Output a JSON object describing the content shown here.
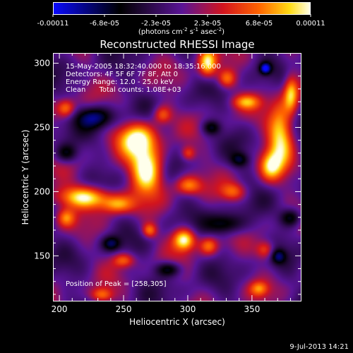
{
  "chart_data": {
    "type": "heatmap",
    "title": "Reconstructed RHESSI Image",
    "xlabel": "Heliocentric X (arcsec)",
    "ylabel": "Heliocentric Y (arcsec)",
    "xlim": [
      195,
      388
    ],
    "ylim": [
      115,
      308
    ],
    "x_ticks": [
      {
        "value": 200,
        "label": "200"
      },
      {
        "value": 250,
        "label": "250"
      },
      {
        "value": 300,
        "label": "300"
      },
      {
        "value": 350,
        "label": "350"
      }
    ],
    "y_ticks": [
      {
        "value": 150,
        "label": "150"
      },
      {
        "value": 200,
        "label": "200"
      },
      {
        "value": 250,
        "label": "250"
      },
      {
        "value": 300,
        "label": "300"
      }
    ],
    "colorbar": {
      "min": -0.00011,
      "max": 0.00011,
      "tick_labels": [
        "-0.00011",
        "-6.8e-05",
        "-2.3e-05",
        "2.3e-05",
        "6.8e-05",
        "0.00011"
      ],
      "unit_text": {
        "pre": "(photons cm",
        "sup1": "-2",
        "mid1": " s",
        "sup2": "-1",
        "mid2": " asec",
        "sup3": "-2",
        "post": ")"
      }
    },
    "info_lines": [
      "15-May-2005 18:32:40.000 to 18:35:16.000",
      "Detectors: 4F 5F 6F 7F 8F, Att 0",
      "Energy Range: 12.0 - 25.0 keV",
      "Clean      Total counts: 1.08E+03"
    ],
    "peak_label": "Position of Peak = [258,305]",
    "peak": [
      258,
      305
    ],
    "sources": [
      {
        "x": 268,
        "y": 218,
        "sx": 9,
        "sy": 13,
        "amp": 1.0
      },
      {
        "x": 260,
        "y": 242,
        "sx": 10,
        "sy": 9,
        "amp": 0.8
      },
      {
        "x": 220,
        "y": 196,
        "sx": 16,
        "sy": 6,
        "amp": 0.85
      },
      {
        "x": 245,
        "y": 190,
        "sx": 9,
        "sy": 5,
        "amp": 0.55
      },
      {
        "x": 297,
        "y": 163,
        "sx": 6,
        "sy": 6,
        "amp": 0.9
      },
      {
        "x": 300,
        "y": 205,
        "sx": 7,
        "sy": 5,
        "amp": 0.55
      },
      {
        "x": 335,
        "y": 200,
        "sx": 7,
        "sy": 5,
        "amp": 0.5
      },
      {
        "x": 372,
        "y": 245,
        "sx": 7,
        "sy": 17,
        "amp": 0.85
      },
      {
        "x": 364,
        "y": 220,
        "sx": 6,
        "sy": 8,
        "amp": 0.6
      },
      {
        "x": 380,
        "y": 277,
        "sx": 4,
        "sy": 10,
        "amp": 0.7
      },
      {
        "x": 315,
        "y": 300,
        "sx": 5,
        "sy": 8,
        "amp": 0.8
      },
      {
        "x": 330,
        "y": 288,
        "sx": 5,
        "sy": 5,
        "amp": 0.5
      },
      {
        "x": 205,
        "y": 265,
        "sx": 5,
        "sy": 5,
        "amp": 0.6
      },
      {
        "x": 280,
        "y": 260,
        "sx": 5,
        "sy": 5,
        "amp": 0.5
      },
      {
        "x": 316,
        "y": 158,
        "sx": 5,
        "sy": 5,
        "amp": 0.5
      },
      {
        "x": 270,
        "y": 170,
        "sx": 4,
        "sy": 4,
        "amp": 0.55
      },
      {
        "x": 205,
        "y": 180,
        "sx": 5,
        "sy": 5,
        "amp": 0.5
      },
      {
        "x": 250,
        "y": 147,
        "sx": 6,
        "sy": 4,
        "amp": 0.5
      },
      {
        "x": 233,
        "y": 120,
        "sx": 6,
        "sy": 4,
        "amp": 0.55
      },
      {
        "x": 360,
        "y": 155,
        "sx": 5,
        "sy": 5,
        "amp": 0.5
      },
      {
        "x": 345,
        "y": 270,
        "sx": 8,
        "sy": 4,
        "amp": 0.5
      },
      {
        "x": 300,
        "y": 230,
        "sx": 4,
        "sy": 4,
        "amp": 0.45
      },
      {
        "x": 355,
        "y": 125,
        "sx": 5,
        "sy": 4,
        "amp": 0.45
      },
      {
        "x": 228,
        "y": 258,
        "sx": 10,
        "sy": 6,
        "amp": -0.6
      },
      {
        "x": 330,
        "y": 175,
        "sx": 10,
        "sy": 6,
        "amp": -0.55
      },
      {
        "x": 380,
        "y": 180,
        "sx": 6,
        "sy": 5,
        "amp": -0.55
      },
      {
        "x": 285,
        "y": 140,
        "sx": 7,
        "sy": 4,
        "amp": -0.5
      },
      {
        "x": 360,
        "y": 296,
        "sx": 3,
        "sy": 3,
        "amp": -0.75
      },
      {
        "x": 205,
        "y": 230,
        "sx": 6,
        "sy": 5,
        "amp": -0.45
      },
      {
        "x": 318,
        "y": 250,
        "sx": 5,
        "sy": 4,
        "amp": -0.45
      },
      {
        "x": 240,
        "y": 160,
        "sx": 5,
        "sy": 4,
        "amp": -0.45
      },
      {
        "x": 370,
        "y": 150,
        "sx": 4,
        "sy": 4,
        "amp": -0.45
      },
      {
        "x": 340,
        "y": 225,
        "sx": 5,
        "sy": 4,
        "amp": -0.4
      }
    ]
  },
  "timestamp": "9-Jul-2013 14:21"
}
